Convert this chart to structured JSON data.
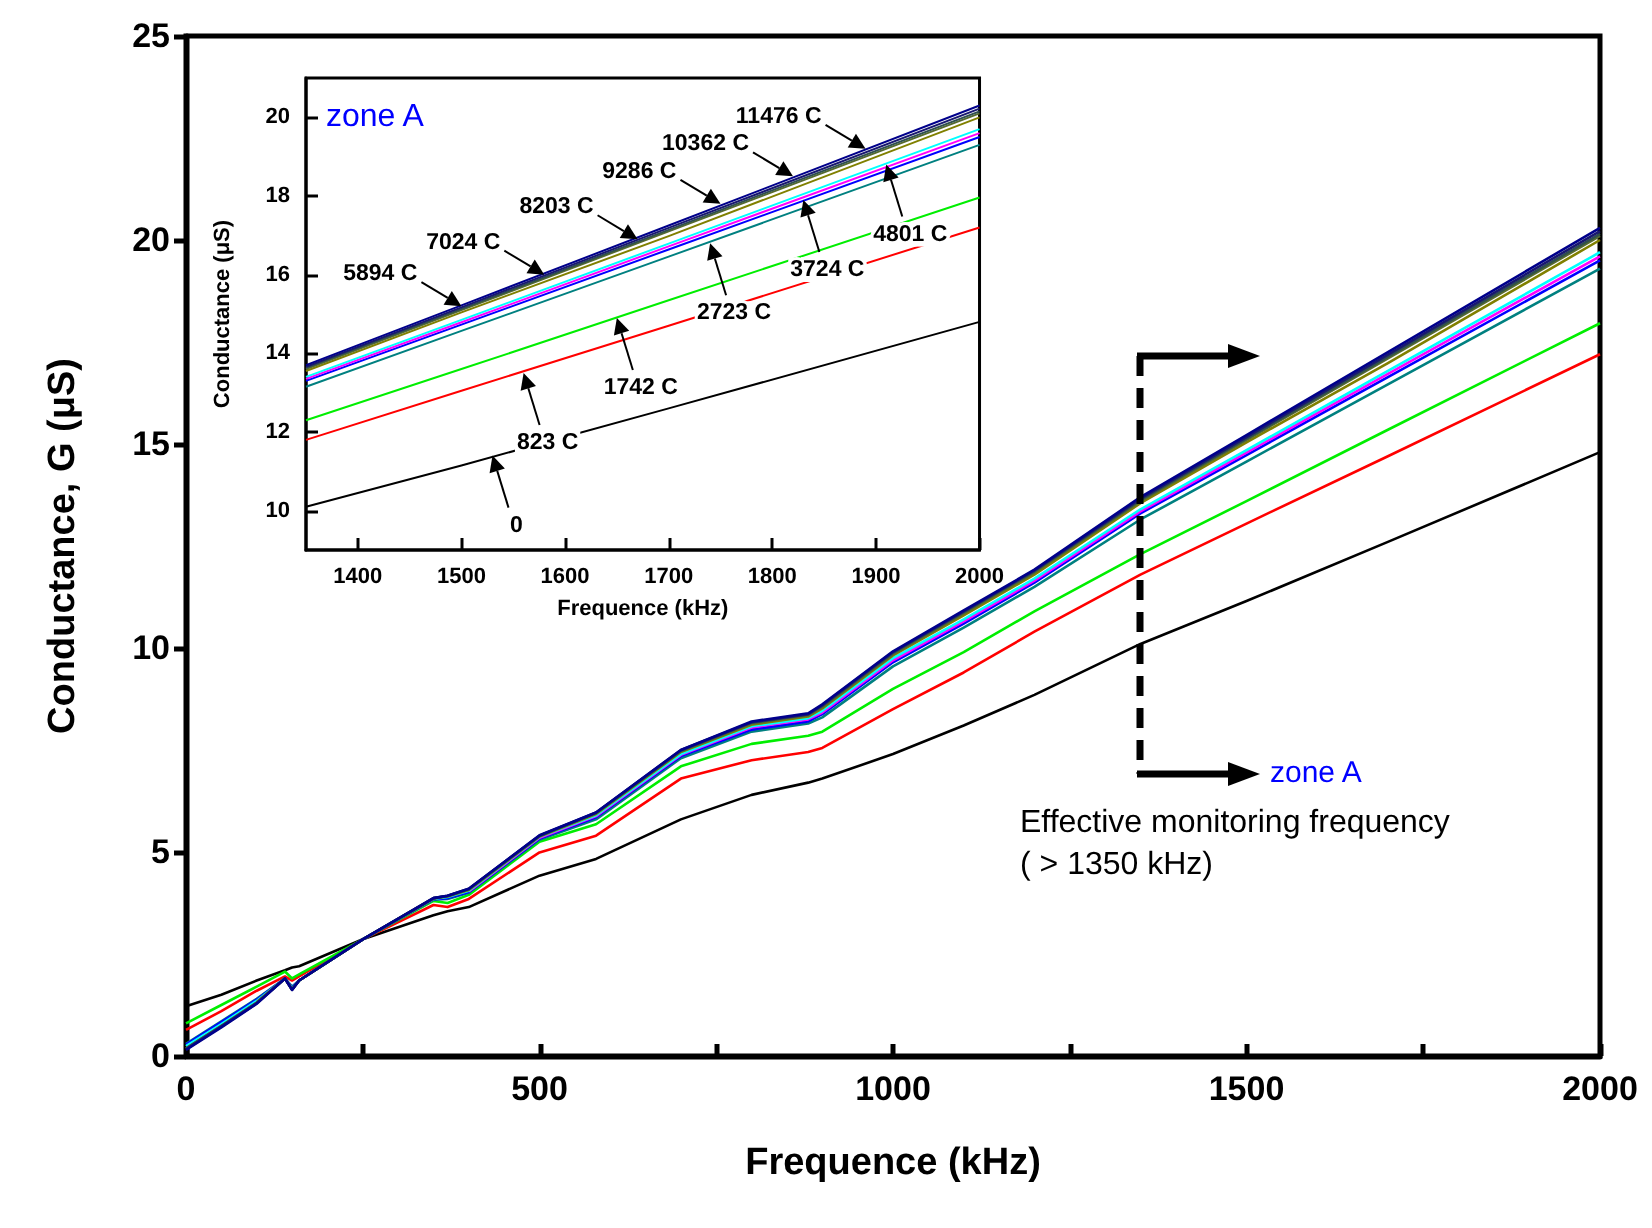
{
  "chart_data": [
    {
      "type": "line",
      "xlabel": "Frequence (kHz)",
      "ylabel": "Conductance, G (μS)",
      "xlim": [
        0,
        2000
      ],
      "ylim": [
        0,
        25
      ],
      "xticks": [
        0,
        {
          "value": 250,
          "label": null
        },
        500,
        {
          "value": 750,
          "label": null
        },
        1000,
        {
          "value": 1250,
          "label": null
        },
        1500,
        {
          "value": 1750,
          "label": null
        },
        2000
      ],
      "yticks": [
        0,
        5,
        10,
        15,
        20,
        25
      ],
      "grid": false,
      "marker": "none",
      "line_style": "solid",
      "x": [
        0,
        50,
        100,
        140,
        150,
        160,
        250,
        350,
        370,
        400,
        500,
        580,
        700,
        800,
        880,
        900,
        1000,
        1100,
        1200,
        1350,
        1500,
        1700,
        2000
      ],
      "series": [
        {
          "color": "#000000",
          "values": [
            1.22,
            1.5,
            1.85,
            2.1,
            2.17,
            2.2,
            2.86,
            3.45,
            3.55,
            3.65,
            4.42,
            4.83,
            5.8,
            6.4,
            6.7,
            6.8,
            7.4,
            8.1,
            8.85,
            10.1,
            11.15,
            12.6,
            14.8
          ]
        },
        {
          "color": "#ff0000",
          "values": [
            0.64,
            1.1,
            1.6,
            1.95,
            1.85,
            1.95,
            2.86,
            3.7,
            3.65,
            3.85,
            4.99,
            5.4,
            6.8,
            7.25,
            7.45,
            7.55,
            8.5,
            9.4,
            10.4,
            11.8,
            13.05,
            14.7,
            17.2
          ]
        },
        {
          "color": "#00ee00",
          "values": [
            0.8,
            1.25,
            1.7,
            2.07,
            1.9,
            2.0,
            2.86,
            3.8,
            3.75,
            3.95,
            5.25,
            5.68,
            7.1,
            7.65,
            7.85,
            7.95,
            9.0,
            9.9,
            10.9,
            12.3,
            13.6,
            15.35,
            17.96
          ]
        },
        {
          "color": "#008080",
          "values": [
            0.3,
            0.85,
            1.4,
            1.9,
            1.7,
            1.85,
            2.86,
            3.83,
            3.85,
            4.0,
            5.3,
            5.8,
            7.3,
            7.95,
            8.15,
            8.3,
            9.55,
            10.5,
            11.5,
            13.15,
            14.57,
            16.46,
            19.3
          ]
        },
        {
          "color": "#0000ff",
          "values": [
            0.28,
            0.83,
            1.38,
            1.9,
            1.68,
            1.85,
            2.86,
            3.84,
            3.87,
            4.02,
            5.33,
            5.85,
            7.35,
            8.0,
            8.2,
            8.38,
            9.65,
            10.6,
            11.6,
            13.3,
            14.73,
            16.64,
            19.5
          ]
        },
        {
          "color": "#ff00ff",
          "values": [
            null,
            null,
            null,
            null,
            null,
            null,
            null,
            null,
            null,
            4.03,
            5.35,
            5.88,
            7.38,
            8.05,
            8.25,
            8.42,
            9.7,
            10.65,
            11.65,
            13.35,
            14.79,
            16.72,
            19.6
          ]
        },
        {
          "color": "#00ffff",
          "values": [
            0.24,
            0.78,
            1.35,
            1.9,
            1.66,
            1.85,
            2.86,
            3.85,
            3.9,
            4.05,
            5.37,
            5.9,
            7.4,
            8.08,
            8.28,
            8.46,
            9.75,
            10.7,
            11.7,
            13.4,
            14.85,
            16.79,
            19.7
          ]
        },
        {
          "color": "#808000",
          "values": [
            null,
            null,
            1.32,
            1.9,
            1.64,
            1.85,
            2.86,
            3.86,
            3.91,
            4.07,
            5.38,
            5.93,
            7.45,
            8.12,
            8.32,
            8.52,
            9.82,
            10.8,
            11.8,
            13.55,
            15.04,
            16.98,
            20.0
          ]
        },
        {
          "color": "#556b2f",
          "values": [
            0.19,
            0.74,
            1.31,
            1.9,
            1.63,
            1.85,
            2.86,
            3.86,
            3.92,
            4.08,
            5.39,
            5.95,
            7.47,
            8.15,
            8.35,
            8.55,
            9.85,
            10.85,
            11.85,
            13.6,
            15.1,
            17.1,
            20.1
          ]
        },
        {
          "color": "#2f4f4f",
          "values": [
            0.18,
            0.73,
            1.3,
            1.9,
            1.63,
            1.85,
            2.86,
            3.87,
            3.92,
            4.09,
            5.4,
            5.96,
            7.48,
            8.17,
            8.37,
            8.58,
            9.88,
            10.88,
            11.88,
            13.63,
            15.13,
            17.14,
            20.15
          ]
        },
        {
          "color": "#191970",
          "values": [
            0.16,
            0.72,
            1.29,
            1.9,
            1.62,
            1.85,
            2.86,
            3.87,
            3.93,
            4.1,
            5.4,
            5.97,
            7.5,
            8.18,
            8.38,
            8.6,
            9.9,
            10.9,
            11.9,
            13.66,
            15.17,
            17.19,
            20.22
          ]
        },
        {
          "color": "#00008b",
          "values": [
            0.15,
            0.7,
            1.28,
            1.9,
            1.62,
            1.85,
            2.86,
            3.87,
            3.93,
            4.1,
            5.41,
            5.97,
            7.5,
            8.2,
            8.4,
            8.62,
            9.92,
            10.92,
            11.92,
            13.7,
            15.22,
            17.25,
            20.3
          ]
        }
      ],
      "annotations": [
        "zone A",
        "Effective monitoring frequency\n( > 1350 kHz)"
      ]
    },
    {
      "type": "line",
      "xlabel": "Frequence (kHz)",
      "ylabel": "Conductance (μS)",
      "xlim": [
        1350,
        2000
      ],
      "ylim": [
        9,
        21
      ],
      "xticks": [
        1400,
        1500,
        1600,
        1700,
        1800,
        1900,
        2000
      ],
      "yticks": [
        10,
        12,
        14,
        16,
        18,
        20
      ],
      "grid": false,
      "marker": "none",
      "line_style": "solid",
      "x": [
        1350,
        1500,
        1700,
        2000
      ],
      "series": [
        {
          "color": "#000000",
          "values": [
            10.1,
            11.15,
            12.6,
            14.8
          ]
        },
        {
          "color": "#ff0000",
          "values": [
            11.8,
            13.05,
            14.7,
            17.2
          ]
        },
        {
          "color": "#00ee00",
          "values": [
            12.3,
            13.6,
            15.35,
            17.96
          ]
        },
        {
          "color": "#008080",
          "values": [
            13.15,
            14.57,
            16.46,
            19.3
          ]
        },
        {
          "color": "#0000ff",
          "values": [
            13.3,
            14.73,
            16.64,
            19.5
          ]
        },
        {
          "color": "#ff00ff",
          "values": [
            13.35,
            14.79,
            16.72,
            19.6
          ]
        },
        {
          "color": "#00ffff",
          "values": [
            13.4,
            14.85,
            16.79,
            19.7
          ]
        },
        {
          "color": "#808000",
          "values": [
            13.55,
            15.04,
            16.98,
            20.0
          ]
        },
        {
          "color": "#556b2f",
          "values": [
            13.6,
            15.1,
            17.1,
            20.1
          ]
        },
        {
          "color": "#2f4f4f",
          "values": [
            13.63,
            15.13,
            17.14,
            20.15
          ]
        },
        {
          "color": "#191970",
          "values": [
            13.66,
            15.17,
            17.19,
            20.22
          ]
        },
        {
          "color": "#00008b",
          "values": [
            13.7,
            15.22,
            17.25,
            20.3
          ]
        }
      ],
      "annotations": [
        "zone A",
        {
          "text": "0",
          "x": 1530,
          "y": 11.4
        },
        {
          "text": "823 C",
          "x": 1560,
          "y": 13.5
        },
        {
          "text": "1742 C",
          "x": 1650,
          "y": 14.9
        },
        {
          "text": "2723 C",
          "x": 1740,
          "y": 16.8
        },
        {
          "text": "3724 C",
          "x": 1830,
          "y": 17.9
        },
        {
          "text": "4801 C",
          "x": 1910,
          "y": 18.8
        },
        {
          "text": "5894 C",
          "x": 1500,
          "y": 15.2
        },
        {
          "text": "7024 C",
          "x": 1580,
          "y": 16.0
        },
        {
          "text": "8203 C",
          "x": 1670,
          "y": 16.9
        },
        {
          "text": "9286 C",
          "x": 1750,
          "y": 17.8
        },
        {
          "text": "10362 C",
          "x": 1820,
          "y": 18.5
        },
        {
          "text": "11476 C",
          "x": 1890,
          "y": 19.2
        }
      ]
    }
  ]
}
